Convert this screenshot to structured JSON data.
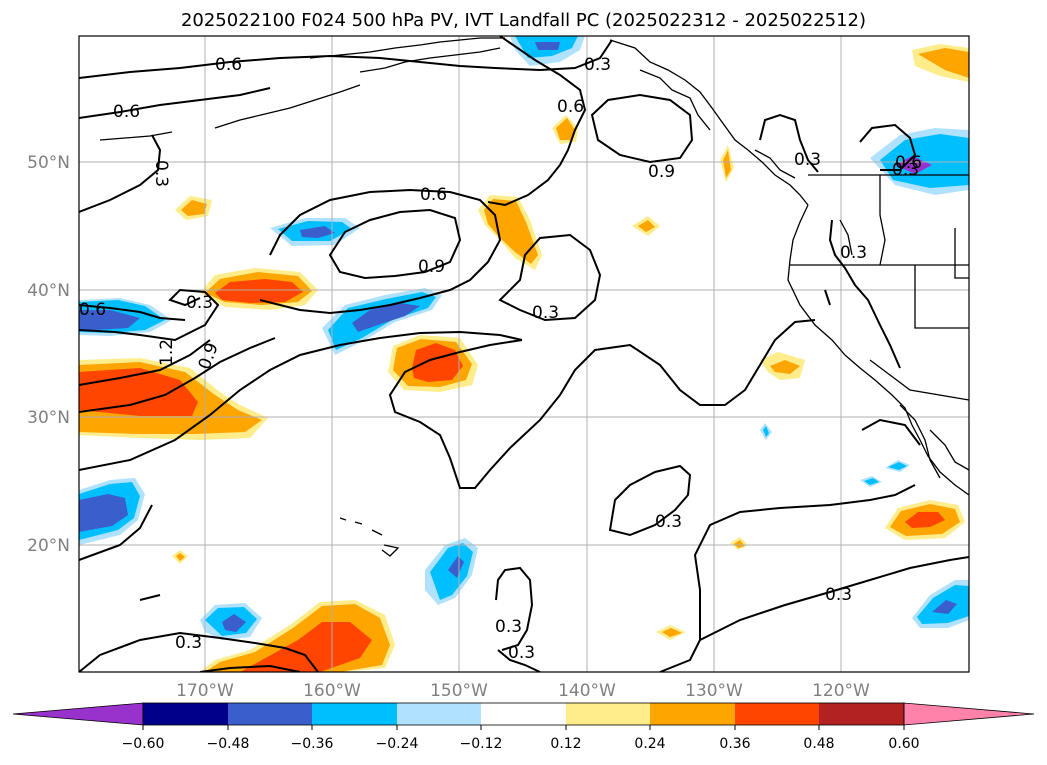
{
  "title": "2025022100 F024 500 hPa PV, IVT Landfall PC (2025022312 - 2025022512)",
  "map": {
    "lon_labels": [
      "170°W",
      "160°W",
      "150°W",
      "140°W",
      "130°W",
      "120°W"
    ],
    "lat_labels": [
      "50°N",
      "40°N",
      "30°N",
      "20°N"
    ],
    "contour_labels": [
      "0.6",
      "0.6",
      "0.3",
      "0.3",
      "0.6",
      "0.9",
      "0.3",
      "0.6",
      "0.9",
      "0.3",
      "0.3",
      "0.3",
      "0.6",
      "0.3",
      "0.6",
      "1.2",
      "0.9",
      "0.3",
      "0.3",
      "0.3",
      "0.3",
      "0.3"
    ]
  },
  "colorbar": {
    "ticks": [
      "−0.60",
      "−0.48",
      "−0.36",
      "−0.24",
      "−0.12",
      "0.12",
      "0.24",
      "0.36",
      "0.48",
      "0.60"
    ],
    "colors": [
      "#9932cc",
      "#00008b",
      "#3a5fcd",
      "#00bfff",
      "#b0e2ff",
      "#ffffff",
      "#ffec8b",
      "#ffa500",
      "#ff4500",
      "#b22222",
      "#ff82ab"
    ]
  }
}
